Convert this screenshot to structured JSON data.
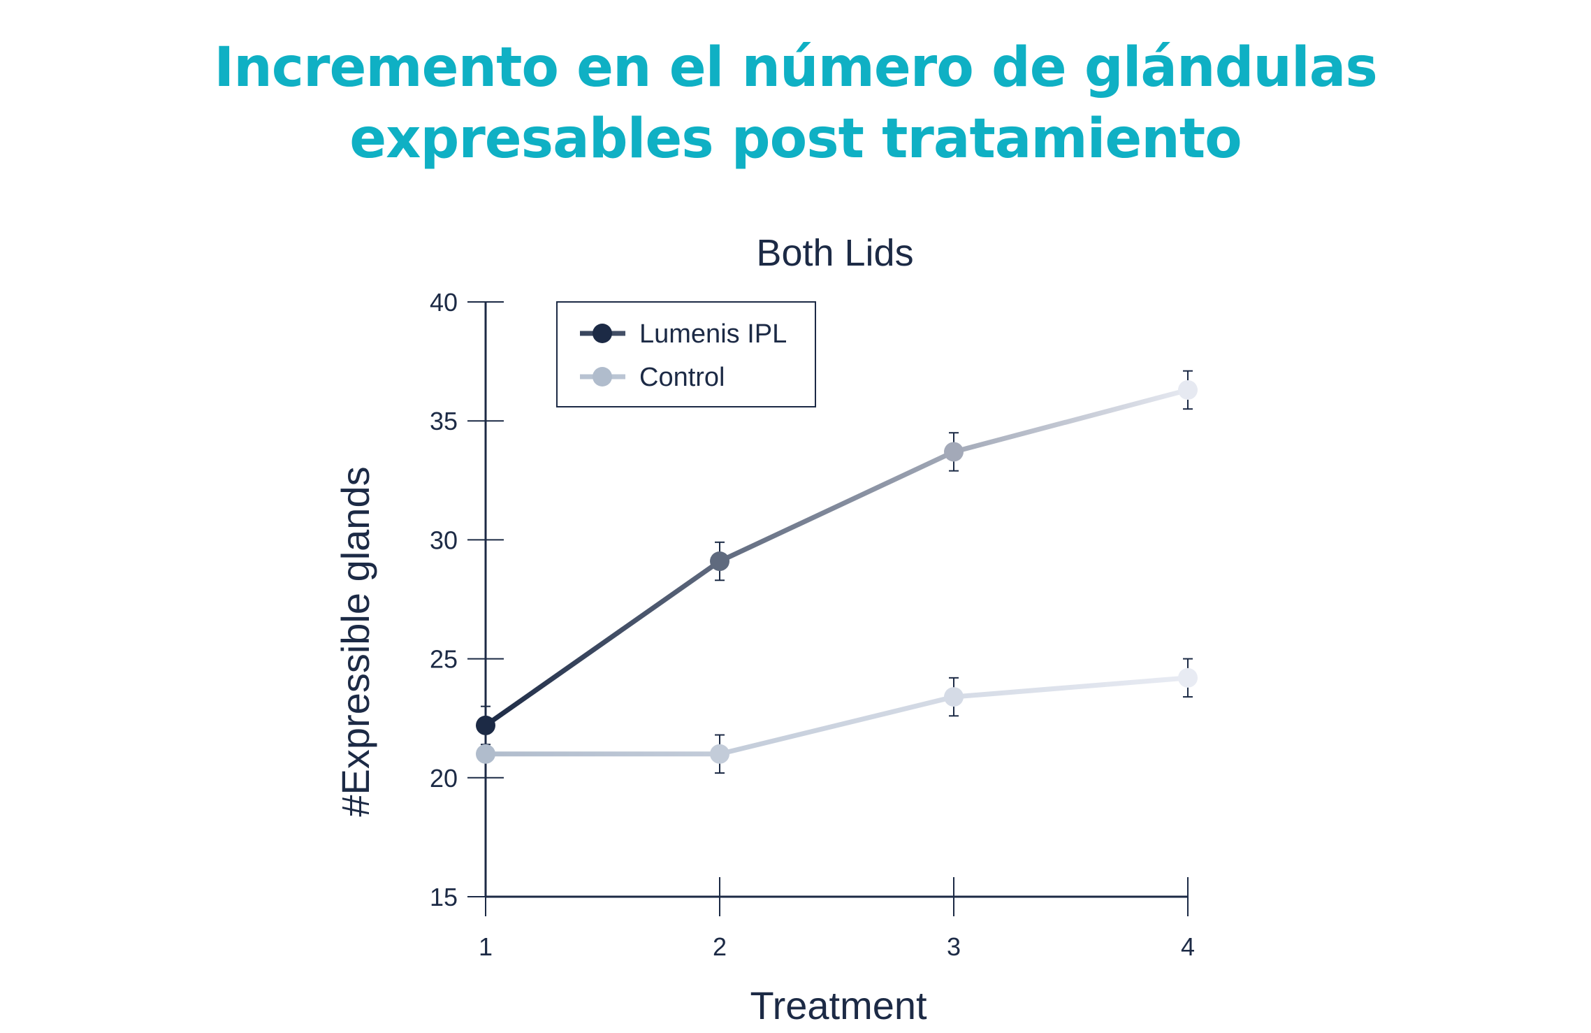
{
  "slide": {
    "title_line1": "Incremento en el número de glándulas",
    "title_line2": "expresables post tratamiento"
  },
  "chart_data": {
    "type": "line",
    "title": "Both Lids",
    "xlabel": "Treatment",
    "ylabel": "#Expressible glands",
    "x": [
      1,
      2,
      3,
      4
    ],
    "x_tick_labels": [
      "1",
      "2",
      "3",
      "4"
    ],
    "ylim": [
      15,
      40
    ],
    "y_ticks": [
      15,
      20,
      25,
      30,
      35,
      40
    ],
    "grid": false,
    "legend_position": "top-left",
    "error_bars": true,
    "series": [
      {
        "name": "Lumenis IPL",
        "values": [
          22.2,
          29.1,
          33.7,
          36.3
        ],
        "errors": [
          0.8,
          0.8,
          0.8,
          0.8
        ],
        "color_start": "#1c2a45",
        "color_end": "#e6e9f1"
      },
      {
        "name": "Control",
        "values": [
          21.0,
          21.0,
          23.4,
          24.2
        ],
        "errors": [
          0.0,
          0.8,
          0.8,
          0.8
        ],
        "color_start": "#b0bccc",
        "color_end": "#e8ebf3"
      }
    ]
  }
}
